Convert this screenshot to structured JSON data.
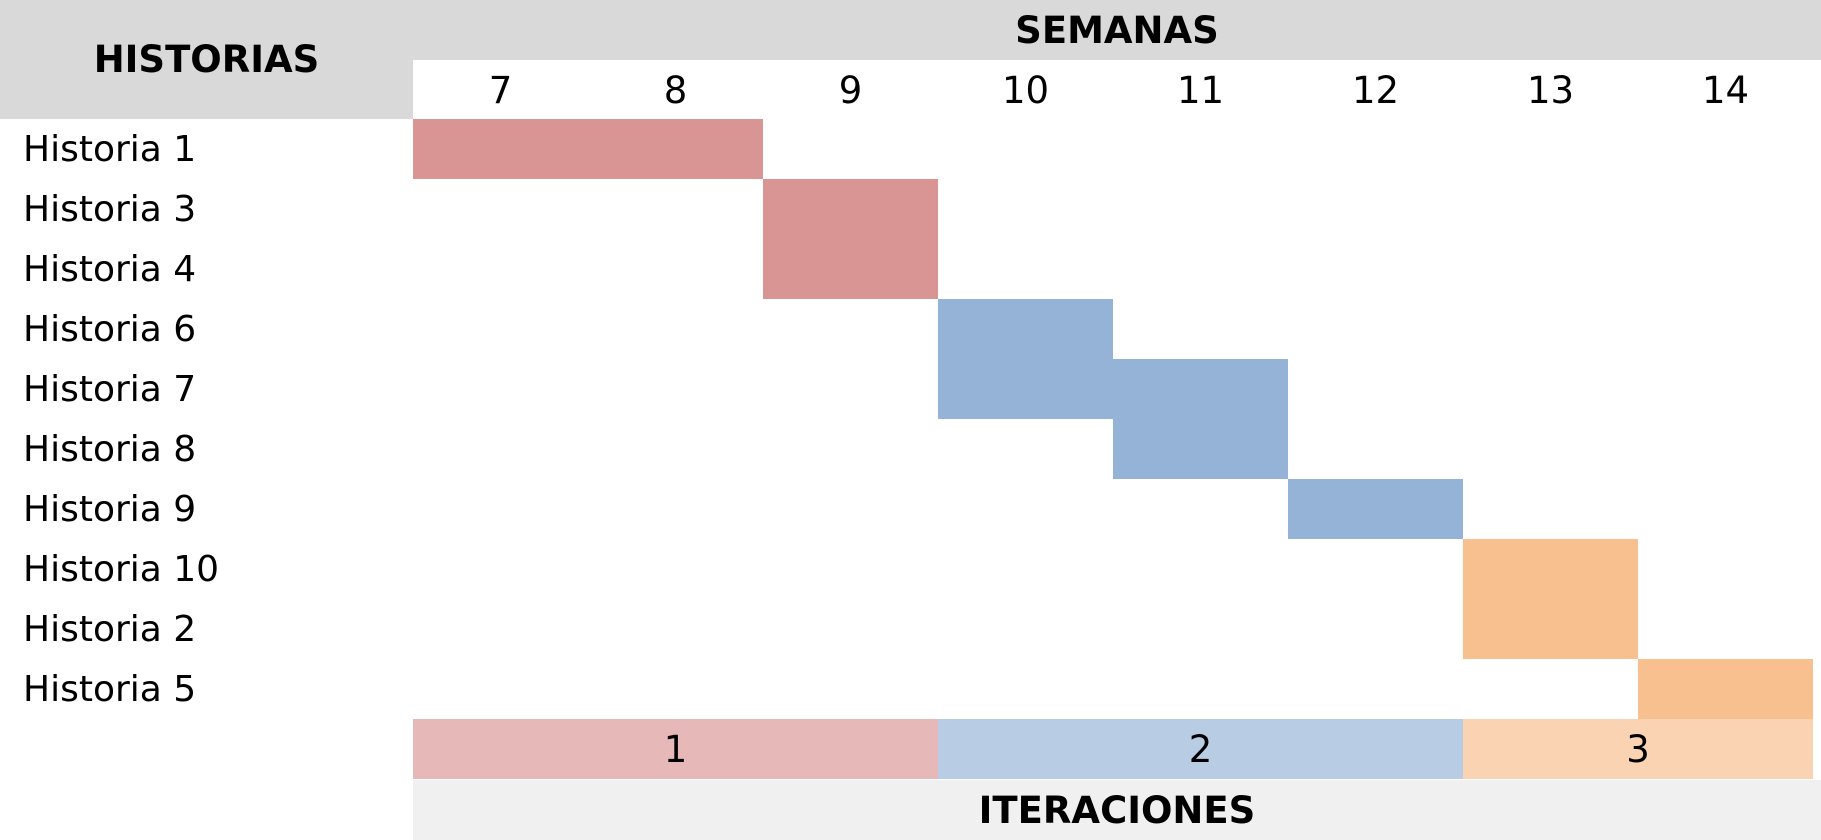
{
  "headers": {
    "stories": "HISTORIAS",
    "weeks": "SEMANAS",
    "iterations": "ITERACIONES"
  },
  "weeks": [
    "7",
    "8",
    "9",
    "10",
    "11",
    "12",
    "13",
    "14"
  ],
  "stories": [
    "Historia 1",
    "Historia 3",
    "Historia 4",
    "Historia 6",
    "Historia 7",
    "Historia 8",
    "Historia 9",
    "Historia 10",
    "Historia 2",
    "Historia 5"
  ],
  "tasks": [
    {
      "story": "Historia 1",
      "week_start": 7,
      "week_end": 8,
      "iteration": 1
    },
    {
      "story": "Historia 3",
      "week_start": 9,
      "week_end": 9,
      "iteration": 1
    },
    {
      "story": "Historia 4",
      "week_start": 9,
      "week_end": 9,
      "iteration": 1
    },
    {
      "story": "Historia 6",
      "week_start": 10,
      "week_end": 10,
      "iteration": 2
    },
    {
      "story": "Historia 7",
      "week_start": 10,
      "week_end": 11,
      "iteration": 2
    },
    {
      "story": "Historia 8",
      "week_start": 11,
      "week_end": 11,
      "iteration": 2
    },
    {
      "story": "Historia 9",
      "week_start": 12,
      "week_end": 12,
      "iteration": 2
    },
    {
      "story": "Historia 10",
      "week_start": 13,
      "week_end": 13,
      "iteration": 3
    },
    {
      "story": "Historia 2",
      "week_start": 13,
      "week_end": 13,
      "iteration": 3
    },
    {
      "story": "Historia 5",
      "week_start": 14,
      "week_end": 14,
      "iteration": 3
    }
  ],
  "iterations": [
    {
      "label": "1",
      "week_start": 7,
      "week_end": 9,
      "bar_color": "#d99594",
      "band_color": "#e6b8b7"
    },
    {
      "label": "2",
      "week_start": 10,
      "week_end": 12,
      "bar_color": "#95b3d7",
      "band_color": "#b8cce4"
    },
    {
      "label": "3",
      "week_start": 13,
      "week_end": 14,
      "bar_color": "#f8c08f",
      "band_color": "#fad4b2"
    }
  ]
}
